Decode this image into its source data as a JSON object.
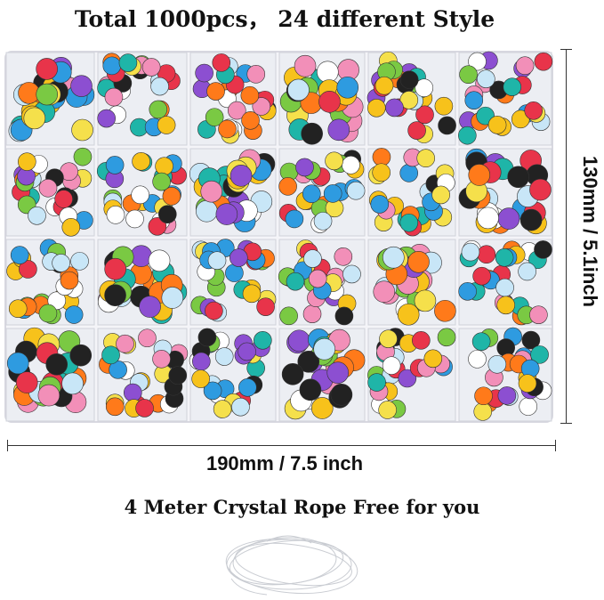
{
  "title": "Total 1000pcs， 24 different Style",
  "height_label": "130mm / 5.1inch",
  "width_label": "190mm / 7.5 inch",
  "subtitle": "4 Meter Crystal Rope Free for you",
  "grid": {
    "columns": 6,
    "rows": 4
  },
  "palette": [
    "#e8344a",
    "#f7c21b",
    "#2e9be0",
    "#7ac943",
    "#f28fb8",
    "#8c4fd1",
    "#ff7a1a",
    "#1fb5a8",
    "#ffffff",
    "#222222",
    "#f5e04b",
    "#c8e6f7"
  ]
}
